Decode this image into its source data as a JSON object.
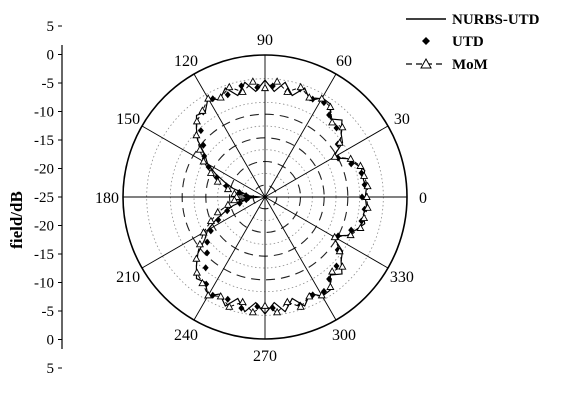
{
  "chart_data": {
    "type": "polar",
    "ylabel": "field/dB",
    "radial_ticks": [
      "5",
      "0",
      "-5",
      "-10",
      "-15",
      "-20",
      "-25",
      "-20",
      "-15",
      "-10",
      "-5",
      "0",
      "5"
    ],
    "angle_ticks": [
      "0",
      "30",
      "60",
      "90",
      "120",
      "150",
      "180",
      "210",
      "240",
      "270",
      "300",
      "330"
    ],
    "angle_tick_values": [
      0,
      30,
      60,
      90,
      120,
      150,
      180,
      210,
      240,
      270,
      300,
      330
    ],
    "rlim": [
      -25,
      5
    ],
    "grid": true,
    "legend_position": "top-right",
    "legend": [
      "NURBS-UTD",
      "UTD",
      "MoM"
    ],
    "series": [
      {
        "name": "NURBS-UTD",
        "style": "solid",
        "points": [
          [
            0,
            -3.8
          ],
          [
            5,
            -3.5
          ],
          [
            10,
            -3.9
          ],
          [
            15,
            -3.2
          ],
          [
            20,
            -4.6
          ],
          [
            25,
            -5.8
          ],
          [
            30,
            -8.5
          ],
          [
            35,
            -5.0
          ],
          [
            40,
            -4.0
          ],
          [
            45,
            -2.0
          ],
          [
            50,
            -3.5
          ],
          [
            55,
            -1.0
          ],
          [
            60,
            -0.8
          ],
          [
            65,
            -2.5
          ],
          [
            70,
            -0.5
          ],
          [
            75,
            -2.8
          ],
          [
            80,
            -0.4
          ],
          [
            85,
            -2.6
          ],
          [
            90,
            -0.3
          ],
          [
            95,
            -2.6
          ],
          [
            100,
            -0.4
          ],
          [
            105,
            -2.8
          ],
          [
            110,
            -0.5
          ],
          [
            115,
            -2.4
          ],
          [
            120,
            -0.9
          ],
          [
            125,
            -3.0
          ],
          [
            130,
            -2.5
          ],
          [
            135,
            -4.5
          ],
          [
            140,
            -6.5
          ],
          [
            145,
            -9.5
          ],
          [
            150,
            -11.0
          ],
          [
            155,
            -13.5
          ],
          [
            160,
            -16.0
          ],
          [
            165,
            -18.0
          ],
          [
            170,
            -20.5
          ],
          [
            175,
            -19.0
          ],
          [
            180,
            -24.0
          ],
          [
            185,
            -19.0
          ],
          [
            190,
            -20.5
          ],
          [
            195,
            -18.0
          ],
          [
            200,
            -16.0
          ],
          [
            205,
            -13.5
          ],
          [
            210,
            -11.0
          ],
          [
            215,
            -9.5
          ],
          [
            220,
            -6.5
          ],
          [
            225,
            -4.5
          ],
          [
            230,
            -2.5
          ],
          [
            235,
            -3.0
          ],
          [
            240,
            -0.9
          ],
          [
            245,
            -2.4
          ],
          [
            250,
            -0.5
          ],
          [
            255,
            -2.8
          ],
          [
            260,
            -0.4
          ],
          [
            265,
            -2.6
          ],
          [
            270,
            -0.3
          ],
          [
            275,
            -2.6
          ],
          [
            280,
            -0.4
          ],
          [
            285,
            -2.8
          ],
          [
            290,
            -0.5
          ],
          [
            295,
            -2.5
          ],
          [
            300,
            -0.8
          ],
          [
            305,
            -1.0
          ],
          [
            310,
            -3.5
          ],
          [
            315,
            -2.0
          ],
          [
            320,
            -4.0
          ],
          [
            325,
            -5.0
          ],
          [
            330,
            -8.5
          ],
          [
            335,
            -5.8
          ],
          [
            340,
            -4.6
          ],
          [
            345,
            -3.2
          ],
          [
            350,
            -3.9
          ],
          [
            355,
            -3.5
          ]
        ]
      },
      {
        "name": "UTD",
        "style": "diamond-markers",
        "points": [
          [
            0,
            -4.5
          ],
          [
            7,
            -3.8
          ],
          [
            14,
            -4.0
          ],
          [
            21,
            -5.5
          ],
          [
            28,
            -7.5
          ],
          [
            36,
            -6.0
          ],
          [
            44,
            -4.0
          ],
          [
            52,
            -3.0
          ],
          [
            58,
            -1.5
          ],
          [
            64,
            -2.0
          ],
          [
            72,
            -1.0
          ],
          [
            78,
            -2.2
          ],
          [
            86,
            -1.5
          ],
          [
            94,
            -1.8
          ],
          [
            102,
            -1.0
          ],
          [
            110,
            -2.0
          ],
          [
            118,
            -1.5
          ],
          [
            126,
            -2.8
          ],
          [
            134,
            -5.5
          ],
          [
            140,
            -8.0
          ],
          [
            146,
            -9.5
          ],
          [
            152,
            -11.5
          ],
          [
            158,
            -14.0
          ],
          [
            164,
            -16.5
          ],
          [
            170,
            -19.5
          ],
          [
            176,
            -21.0
          ],
          [
            182,
            -21.5
          ],
          [
            188,
            -21.0
          ],
          [
            194,
            -19.5
          ],
          [
            200,
            -16.5
          ],
          [
            206,
            -14.0
          ],
          [
            212,
            -11.5
          ],
          [
            218,
            -9.5
          ],
          [
            224,
            -8.0
          ],
          [
            230,
            -5.5
          ],
          [
            236,
            -2.8
          ],
          [
            242,
            -1.5
          ],
          [
            250,
            -2.0
          ],
          [
            258,
            -1.0
          ],
          [
            266,
            -1.8
          ],
          [
            274,
            -1.5
          ],
          [
            282,
            -2.2
          ],
          [
            288,
            -1.0
          ],
          [
            296,
            -2.0
          ],
          [
            302,
            -1.5
          ],
          [
            308,
            -3.0
          ],
          [
            316,
            -4.0
          ],
          [
            324,
            -6.0
          ],
          [
            332,
            -7.5
          ],
          [
            339,
            -5.5
          ],
          [
            346,
            -4.0
          ],
          [
            353,
            -3.8
          ]
        ]
      },
      {
        "name": "MoM",
        "style": "dashed-triangle",
        "points": [
          [
            0,
            -3.5
          ],
          [
            6,
            -3.2
          ],
          [
            12,
            -3.6
          ],
          [
            18,
            -3.8
          ],
          [
            24,
            -5.2
          ],
          [
            30,
            -8.0
          ],
          [
            36,
            -5.5
          ],
          [
            42,
            -3.0
          ],
          [
            48,
            -3.8
          ],
          [
            54,
            -1.5
          ],
          [
            60,
            -1.0
          ],
          [
            66,
            -2.0
          ],
          [
            72,
            -0.6
          ],
          [
            78,
            -2.3
          ],
          [
            84,
            -0.5
          ],
          [
            90,
            -2.0
          ],
          [
            96,
            -0.5
          ],
          [
            102,
            -2.3
          ],
          [
            108,
            -0.6
          ],
          [
            114,
            -2.0
          ],
          [
            120,
            -1.0
          ],
          [
            126,
            -2.5
          ],
          [
            132,
            -3.5
          ],
          [
            138,
            -5.5
          ],
          [
            144,
            -8.0
          ],
          [
            150,
            -10.0
          ],
          [
            156,
            -12.5
          ],
          [
            162,
            -14.5
          ],
          [
            168,
            -17.0
          ],
          [
            174,
            -18.5
          ],
          [
            180,
            -19.0
          ],
          [
            186,
            -18.5
          ],
          [
            192,
            -17.0
          ],
          [
            198,
            -14.5
          ],
          [
            204,
            -12.5
          ],
          [
            210,
            -10.0
          ],
          [
            216,
            -8.0
          ],
          [
            222,
            -5.5
          ],
          [
            228,
            -3.5
          ],
          [
            234,
            -2.5
          ],
          [
            240,
            -1.0
          ],
          [
            246,
            -2.0
          ],
          [
            252,
            -0.6
          ],
          [
            258,
            -2.3
          ],
          [
            264,
            -0.5
          ],
          [
            270,
            -2.0
          ],
          [
            276,
            -0.5
          ],
          [
            282,
            -2.3
          ],
          [
            288,
            -0.6
          ],
          [
            294,
            -2.0
          ],
          [
            300,
            -1.0
          ],
          [
            306,
            -1.5
          ],
          [
            312,
            -3.8
          ],
          [
            318,
            -3.0
          ],
          [
            324,
            -5.5
          ],
          [
            330,
            -8.0
          ],
          [
            336,
            -5.2
          ],
          [
            342,
            -3.8
          ],
          [
            348,
            -3.6
          ],
          [
            354,
            -3.2
          ]
        ]
      }
    ]
  }
}
